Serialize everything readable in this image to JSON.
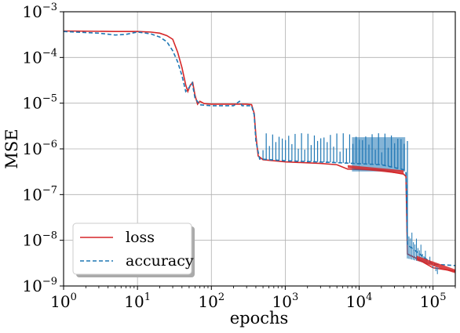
{
  "chart_data": {
    "type": "line",
    "title": "",
    "xlabel": "epochs",
    "ylabel": "MSE",
    "xscale": "log",
    "yscale": "log",
    "xlim": [
      1,
      200000
    ],
    "ylim": [
      1e-09,
      0.001
    ],
    "grid": true,
    "legend_position": "lower-left",
    "x_ticks": [
      {
        "value": 1,
        "base": "10",
        "exp": "0"
      },
      {
        "value": 10,
        "base": "10",
        "exp": "1"
      },
      {
        "value": 100,
        "base": "10",
        "exp": "2"
      },
      {
        "value": 1000,
        "base": "10",
        "exp": "3"
      },
      {
        "value": 10000,
        "base": "10",
        "exp": "4"
      },
      {
        "value": 100000,
        "base": "10",
        "exp": "5"
      }
    ],
    "y_ticks": [
      {
        "value": 0.001,
        "base": "10",
        "exp": "−3"
      },
      {
        "value": 0.0001,
        "base": "10",
        "exp": "−4"
      },
      {
        "value": 1e-05,
        "base": "10",
        "exp": "−5"
      },
      {
        "value": 1e-06,
        "base": "10",
        "exp": "−6"
      },
      {
        "value": 1e-07,
        "base": "10",
        "exp": "−7"
      },
      {
        "value": 1e-08,
        "base": "10",
        "exp": "−8"
      },
      {
        "value": 1e-09,
        "base": "10",
        "exp": "−9"
      }
    ],
    "series": [
      {
        "name": "loss",
        "color": "#d62728",
        "dash": "solid",
        "points": [
          [
            1,
            0.00038
          ],
          [
            5,
            0.00037
          ],
          [
            10,
            0.00037
          ],
          [
            15,
            0.00036
          ],
          [
            20,
            0.00034
          ],
          [
            25,
            0.0003
          ],
          [
            30,
            0.00025
          ],
          [
            35,
            0.00013
          ],
          [
            40,
            6e-05
          ],
          [
            45,
            2.5e-05
          ],
          [
            48,
            1.8e-05
          ],
          [
            52,
            2.5e-05
          ],
          [
            56,
            2.8e-05
          ],
          [
            60,
            1.5e-05
          ],
          [
            65,
            9.5e-06
          ],
          [
            70,
            1.1e-05
          ],
          [
            80,
            9.8e-06
          ],
          [
            100,
            9.5e-06
          ],
          [
            200,
            9.5e-06
          ],
          [
            300,
            9.5e-06
          ],
          [
            350,
            9.3e-06
          ],
          [
            380,
            6e-06
          ],
          [
            400,
            2e-06
          ],
          [
            430,
            7e-07
          ],
          [
            500,
            5.8e-07
          ],
          [
            1000,
            5.2e-07
          ],
          [
            3000,
            4.8e-07
          ],
          [
            5000,
            4.5e-07
          ],
          [
            7000,
            3.6e-07
          ],
          [
            20000,
            3.4e-07
          ],
          [
            40000,
            2.8e-07
          ],
          [
            43000,
            2.5e-07
          ],
          [
            45000,
            5e-09
          ],
          [
            60000,
            4e-09
          ],
          [
            100000,
            2.5e-09
          ],
          [
            200000,
            2.1e-09
          ]
        ]
      },
      {
        "name": "accuracy",
        "color": "#1f77b4",
        "dash": "dashed",
        "points": [
          [
            1,
            0.00037
          ],
          [
            3,
            0.00034
          ],
          [
            5,
            0.00031
          ],
          [
            7,
            0.00032
          ],
          [
            10,
            0.00036
          ],
          [
            15,
            0.00033
          ],
          [
            20,
            0.00028
          ],
          [
            25,
            0.00022
          ],
          [
            30,
            0.00014
          ],
          [
            35,
            8e-05
          ],
          [
            40,
            4e-05
          ],
          [
            45,
            1.8e-05
          ],
          [
            50,
            2.2e-05
          ],
          [
            55,
            2.8e-05
          ],
          [
            60,
            1.3e-05
          ],
          [
            70,
            9.2e-06
          ],
          [
            100,
            8.8e-06
          ],
          [
            200,
            8.8e-06
          ],
          [
            240,
            1.1e-05
          ],
          [
            260,
            8.8e-06
          ],
          [
            350,
            8.8e-06
          ],
          [
            380,
            5.5e-06
          ],
          [
            400,
            1.5e-06
          ],
          [
            450,
            6e-07
          ],
          [
            1000,
            5.5e-07
          ],
          [
            5000,
            5e-07
          ],
          [
            20000,
            4.5e-07
          ],
          [
            40000,
            3.5e-07
          ],
          [
            43000,
            3e-07
          ],
          [
            45000,
            8e-09
          ],
          [
            100000,
            3e-09
          ],
          [
            200000,
            2.8e-09
          ]
        ],
        "spike_band": {
          "x_start": 500,
          "x_end": 45000,
          "upper": 2.2e-06
        }
      }
    ]
  }
}
